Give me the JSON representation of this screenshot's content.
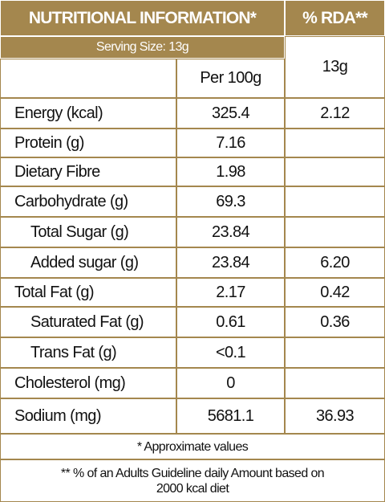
{
  "header": {
    "title": "NUTRITIONAL INFORMATION*",
    "rda": "% RDA**"
  },
  "serving_size": "Serving Size:  13g",
  "columns": {
    "per100g": "Per  100g",
    "serving": "13g"
  },
  "rows": [
    {
      "name": "Energy (kcal)",
      "per100g": "325.4",
      "rda": "2.12"
    },
    {
      "name": "Protein (g)",
      "per100g": "7.16"
    },
    {
      "name": "Dietary Fibre",
      "per100g": "1.98"
    },
    {
      "name": "Carbohydrate (g)",
      "per100g": "69.3",
      "sub": [
        {
          "name": "Total Sugar (g)",
          "per100g": "23.84"
        },
        {
          "name": "Added sugar (g)",
          "per100g": "23.84",
          "rda": "6.20"
        }
      ]
    },
    {
      "name": "Total Fat (g)",
      "per100g": "2.17",
      "rda": "0.42",
      "sub": [
        {
          "name": "Saturated Fat (g)",
          "per100g": "0.61",
          "rda": "0.36"
        },
        {
          "name": "Trans Fat (g)",
          "per100g": "<0.1"
        }
      ]
    },
    {
      "name": "Cholesterol (mg)",
      "per100g": "0"
    },
    {
      "name": "Sodium (mg)",
      "per100g": "5681.1",
      "rda": "36.93"
    }
  ],
  "footnotes": [
    "* Approximate values",
    "** % of an Adults Guideline daily Amount based on 2000 kcal diet"
  ]
}
